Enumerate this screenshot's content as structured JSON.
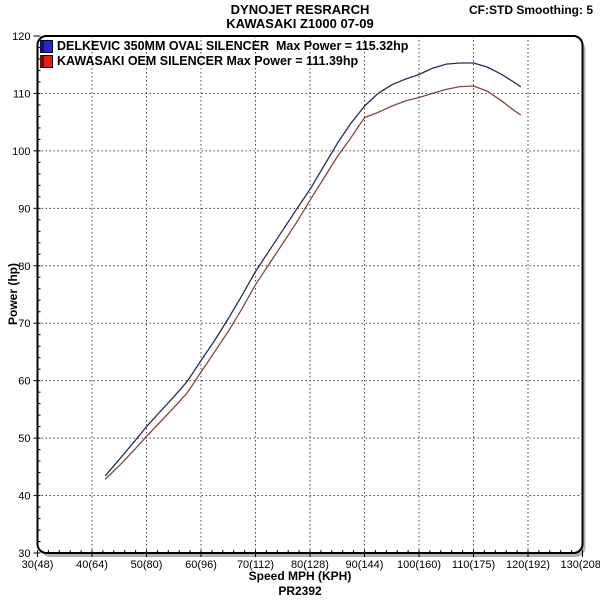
{
  "header": {
    "title_line1": "DYNOJET RESRARCH",
    "title_line2": "KAWASAKI Z1000 07-09",
    "smoothing_label": "CF:STD Smoothing: 5"
  },
  "legend": {
    "items": [
      {
        "label": "DELKEVIC 350MM OVAL SILENCER  Max Power = 115.32hp",
        "color": "#2626cf",
        "dark_color": "#12125e"
      },
      {
        "label": "KAWASAKI OEM SILENCER Max Power = 111.39hp",
        "color": "#e01e1e",
        "dark_color": "#6b0d0d"
      }
    ]
  },
  "chart_data": {
    "type": "line",
    "xlabel": "Speed MPH (KPH)",
    "ylabel": "Power (hp)",
    "xlim": [
      30,
      130
    ],
    "ylim": [
      30,
      120
    ],
    "x_major_step": 10,
    "x_minor_step": 2,
    "y_major_step": 10,
    "y_minor_step": 2,
    "grid": "dotted",
    "legend_position": "top-left",
    "x_tick_labels": [
      "30(48)",
      "40(64)",
      "50(80)",
      "60(96)",
      "70(112)",
      "80(128)",
      "90(144)",
      "100(160)",
      "110(175)",
      "120(192)",
      "130(208)"
    ],
    "y_tick_labels": [
      "30",
      "40",
      "50",
      "60",
      "70",
      "80",
      "90",
      "100",
      "110",
      "120"
    ],
    "x": [
      42.5,
      45,
      47.5,
      50,
      52.5,
      55,
      57.5,
      60,
      62.5,
      65,
      67.5,
      70,
      72.5,
      75,
      77.5,
      80,
      82.5,
      85,
      87.5,
      90,
      92.5,
      95,
      97.5,
      100,
      102.5,
      105,
      107.5,
      110,
      112.5,
      115,
      117.5,
      118.6
    ],
    "series": [
      {
        "name": "DELKEVIC 350MM OVAL SILENCER",
        "max_power_hp": 115.32,
        "color": "#2c2c52",
        "values": [
          43.5,
          46.3,
          49.1,
          52.0,
          54.6,
          57.2,
          59.9,
          63.5,
          67.0,
          70.8,
          74.8,
          79.0,
          82.6,
          86.2,
          89.8,
          93.3,
          97.3,
          101.3,
          104.8,
          107.8,
          110.0,
          111.5,
          112.5,
          113.3,
          114.4,
          115.1,
          115.3,
          115.3,
          114.6,
          113.4,
          111.9,
          111.2
        ]
      },
      {
        "name": "KAWASAKI OEM SILENCER",
        "max_power_hp": 111.39,
        "color": "#7c4a42",
        "values": [
          42.9,
          45.2,
          47.7,
          50.3,
          52.8,
          55.3,
          57.9,
          61.5,
          65.0,
          68.6,
          72.5,
          76.7,
          80.3,
          83.9,
          87.5,
          91.4,
          95.2,
          99.0,
          102.3,
          105.8,
          106.7,
          107.8,
          108.7,
          109.3,
          110.0,
          110.7,
          111.2,
          111.3,
          110.4,
          108.8,
          107.0,
          106.3
        ]
      }
    ]
  },
  "footer": {
    "run_id": "PR2392"
  }
}
